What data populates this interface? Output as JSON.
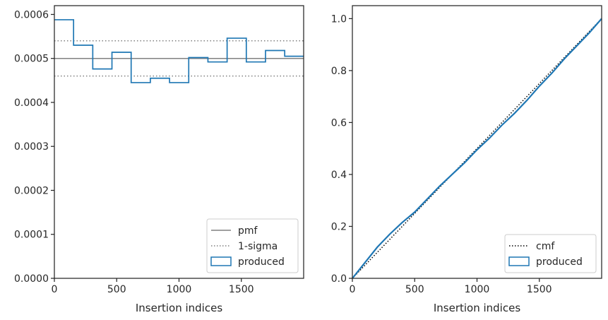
{
  "colors": {
    "produced": "#1f77b4",
    "pmf": "#808080",
    "sigma": "#808080",
    "cmf": "#000000",
    "axis": "#262626"
  },
  "chart_data": [
    {
      "type": "line",
      "xlabel": "Insertion indices",
      "ylabel": "",
      "xlim": [
        0,
        2000
      ],
      "ylim": [
        0,
        0.00062
      ],
      "xticks": [
        0,
        500,
        1000,
        1500
      ],
      "xtick_labels": [
        "0",
        "500",
        "1000",
        "1500"
      ],
      "yticks": [
        0,
        0.0001,
        0.0002,
        0.0003,
        0.0004,
        0.0005,
        0.0006
      ],
      "ytick_labels": [
        "0.0000",
        "0.0001",
        "0.0002",
        "0.0003",
        "0.0004",
        "0.0005",
        "0.0006"
      ],
      "legend_position": "lower-right",
      "legend": [
        {
          "label": "pmf",
          "style": "solid"
        },
        {
          "label": "1-sigma",
          "style": "dotted"
        },
        {
          "label": "produced",
          "style": "box"
        }
      ],
      "pmf": 0.0005,
      "sigma_band": [
        0.00046,
        0.00054
      ],
      "series": [
        {
          "name": "produced",
          "style": "step",
          "bin_edges": [
            0,
            154,
            308,
            462,
            616,
            770,
            924,
            1078,
            1232,
            1386,
            1540,
            1694,
            1848,
            2000
          ],
          "values": [
            0.000588,
            0.00053,
            0.000476,
            0.000514,
            0.000445,
            0.000455,
            0.000445,
            0.000502,
            0.000492,
            0.000546,
            0.000492,
            0.000518,
            0.000505
          ]
        }
      ]
    },
    {
      "type": "line",
      "xlabel": "Insertion indices",
      "ylabel": "",
      "xlim": [
        0,
        2000
      ],
      "ylim": [
        0,
        1.05
      ],
      "xticks": [
        0,
        500,
        1000,
        1500
      ],
      "xtick_labels": [
        "0",
        "500",
        "1000",
        "1500"
      ],
      "yticks": [
        0,
        0.2,
        0.4,
        0.6,
        0.8,
        1.0
      ],
      "ytick_labels": [
        "0.0",
        "0.2",
        "0.4",
        "0.6",
        "0.8",
        "1.0"
      ],
      "legend_position": "lower-right",
      "legend": [
        {
          "label": "cmf",
          "style": "dotted"
        },
        {
          "label": "produced",
          "style": "box"
        }
      ],
      "series": [
        {
          "name": "cmf",
          "style": "dotted",
          "x": [
            0,
            2000
          ],
          "y": [
            0,
            1.0
          ]
        },
        {
          "name": "produced",
          "style": "solid",
          "x": [
            0,
            100,
            200,
            300,
            400,
            500,
            600,
            700,
            800,
            900,
            1000,
            1100,
            1200,
            1300,
            1400,
            1500,
            1600,
            1700,
            1800,
            1900,
            2000
          ],
          "y": [
            0,
            0.06,
            0.12,
            0.17,
            0.215,
            0.255,
            0.305,
            0.355,
            0.4,
            0.445,
            0.495,
            0.54,
            0.59,
            0.635,
            0.685,
            0.74,
            0.79,
            0.845,
            0.895,
            0.945,
            1.0
          ]
        }
      ]
    }
  ]
}
